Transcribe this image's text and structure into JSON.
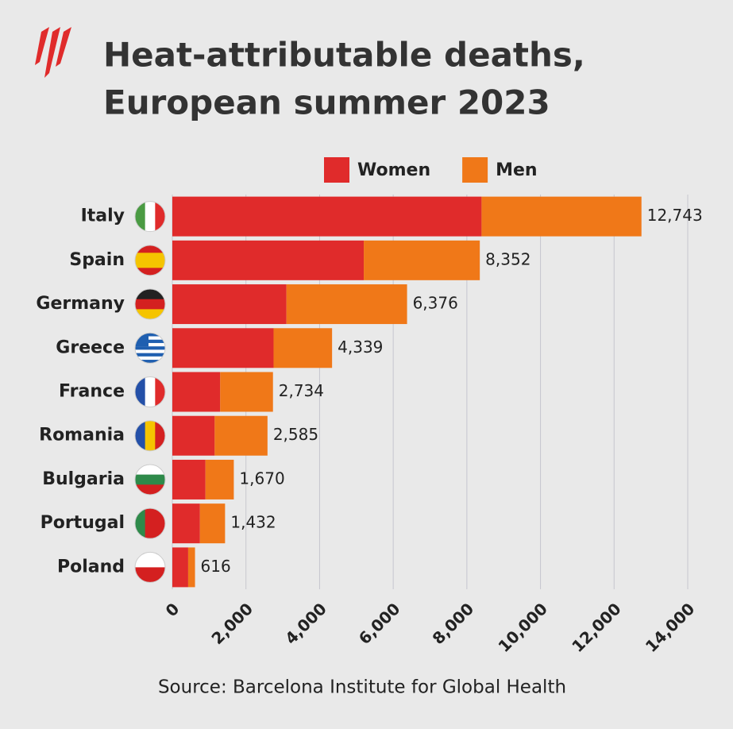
{
  "chart_data": {
    "type": "stacked-barh",
    "title": "Heat-attributable deaths,",
    "subtitle": "European summer 2023",
    "source": "Source: Barcelona Institute for Global Health",
    "categories": [
      "Italy",
      "Spain",
      "Germany",
      "Greece",
      "France",
      "Romania",
      "Bulgaria",
      "Portugal",
      "Poland"
    ],
    "series": [
      {
        "name": "Women",
        "color": "#e02b2b",
        "values": [
          8400,
          5200,
          3100,
          2750,
          1300,
          1150,
          900,
          750,
          430
        ]
      },
      {
        "name": "Men",
        "color": "#f07818",
        "values": [
          4343,
          3152,
          3276,
          1589,
          1434,
          1435,
          770,
          682,
          186
        ]
      }
    ],
    "totals": [
      12743,
      8352,
      6376,
      4339,
      2734,
      2585,
      1670,
      1432,
      616
    ],
    "value_labels": [
      "12,743",
      "8,352",
      "6,376",
      "4,339",
      "2,734",
      "2,585",
      "1,670",
      "1,432",
      "616"
    ],
    "xlim": [
      0,
      14000
    ],
    "xticks": [
      0,
      {
        "value": 2000,
        "label": "2,000"
      },
      {
        "value": 4000,
        "label": "4,000"
      },
      {
        "value": 6000,
        "label": "6,000"
      },
      {
        "value": 8000,
        "label": "8,000"
      },
      {
        "value": 10000,
        "label": "10,000"
      },
      {
        "value": 12000,
        "label": "12,000"
      },
      {
        "value": 14000,
        "label": "14,000"
      }
    ],
    "grid": true
  }
}
